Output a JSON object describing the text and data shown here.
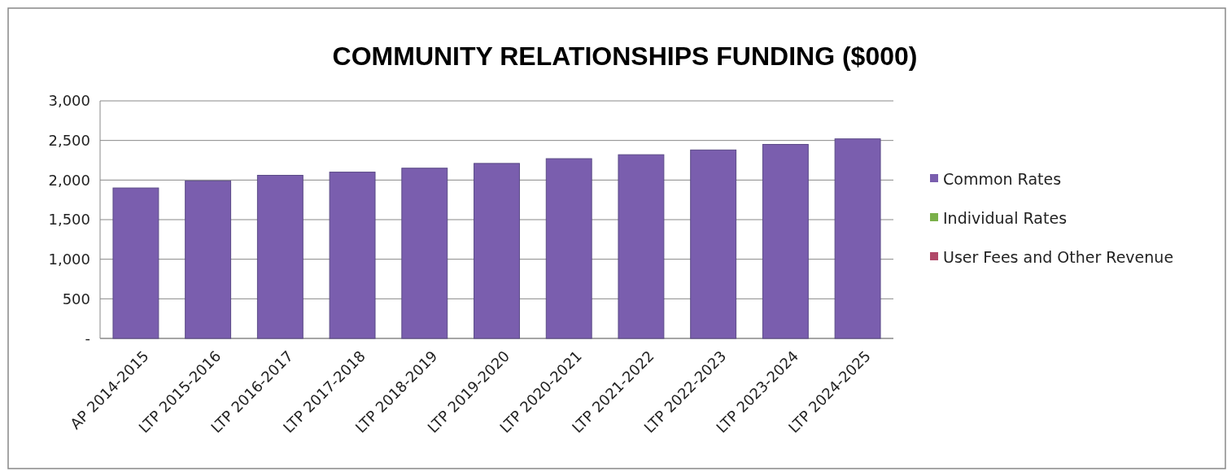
{
  "chart_data": {
    "type": "bar",
    "title": "COMMUNITY RELATIONSHIPS FUNDING ($000)",
    "stacked": true,
    "categories": [
      "AP 2014-2015",
      "LTP 2015-2016",
      "LTP 2016-2017",
      "LTP 2017-2018",
      "LTP 2018-2019",
      "LTP 2019-2020",
      "LTP 2020-2021",
      "LTP 2021-2022",
      "LTP 2022-2023",
      "LTP 2023-2024",
      "LTP 2024-2025"
    ],
    "series": [
      {
        "name": "Common Rates",
        "color": "#7a5eae",
        "values": [
          1900,
          1990,
          2060,
          2100,
          2150,
          2210,
          2270,
          2320,
          2380,
          2450,
          2520
        ]
      },
      {
        "name": "Individual Rates",
        "color": "#7ab04a",
        "values": [
          0,
          0,
          0,
          0,
          0,
          0,
          0,
          0,
          0,
          0,
          0
        ]
      },
      {
        "name": "User Fees and Other Revenue",
        "color": "#b04868",
        "values": [
          0,
          0,
          0,
          0,
          0,
          0,
          0,
          0,
          0,
          0,
          0
        ]
      }
    ],
    "ylim": [
      0,
      3000
    ],
    "yticks": [
      {
        "value": 0,
        "label": "-"
      },
      {
        "value": 500,
        "label": "500"
      },
      {
        "value": 1000,
        "label": "1,000"
      },
      {
        "value": 1500,
        "label": "1,500"
      },
      {
        "value": 2000,
        "label": "2,000"
      },
      {
        "value": 2500,
        "label": "2,500"
      },
      {
        "value": 3000,
        "label": "3,000"
      }
    ],
    "grid": "y",
    "legend": "right"
  }
}
